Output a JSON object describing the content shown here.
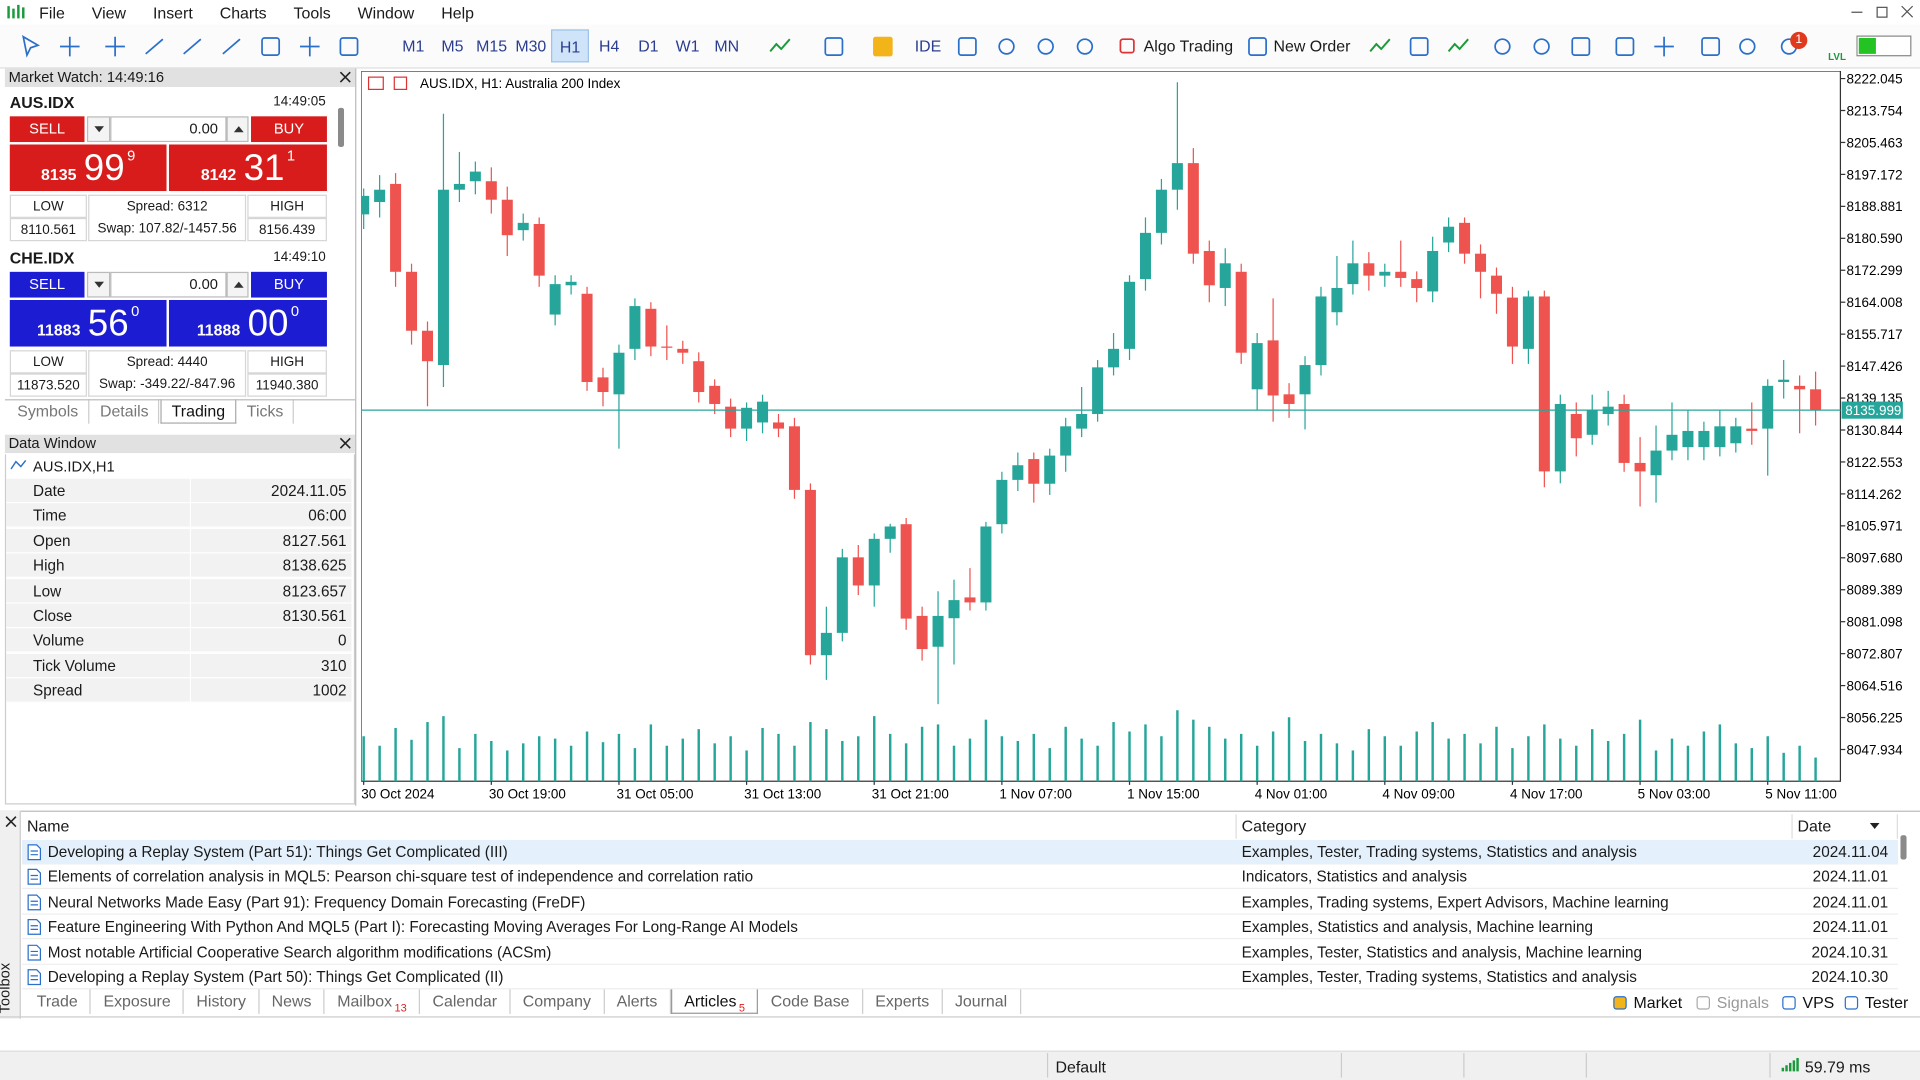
{
  "menu": [
    "File",
    "View",
    "Insert",
    "Charts",
    "Tools",
    "Window",
    "Help"
  ],
  "timeframes": [
    "M1",
    "M5",
    "M15",
    "M30",
    "H1",
    "H4",
    "D1",
    "W1",
    "MN"
  ],
  "toolbar": {
    "ide": "IDE",
    "algo_trading": "Algo Trading",
    "new_order": "New Order",
    "notifications": 1,
    "level": "LVL"
  },
  "market_watch": {
    "title": "Market Watch: 14:49:16",
    "symbols": [
      {
        "name": "AUS.IDX",
        "time": "14:49:05",
        "color": "#d81c1c",
        "sell": "SELL",
        "buy": "BUY",
        "volume": "0.00",
        "bid_big": "8135",
        "bid_main": "99",
        "bid_small": "9",
        "ask_big": "8142",
        "ask_main": "31",
        "ask_small": "1",
        "low_label": "LOW",
        "high_label": "HIGH",
        "spread": "Spread: 6312",
        "swap": "Swap: 107.82/-1457.56",
        "low": "8110.561",
        "high": "8156.439"
      },
      {
        "name": "CHE.IDX",
        "time": "14:49:10",
        "color": "#1c1cd2",
        "sell": "SELL",
        "buy": "BUY",
        "volume": "0.00",
        "bid_big": "11883",
        "bid_main": "56",
        "bid_small": "0",
        "ask_big": "11888",
        "ask_main": "00",
        "ask_small": "0",
        "low_label": "LOW",
        "high_label": "HIGH",
        "spread": "Spread: 4440",
        "swap": "Swap: -349.22/-847.96",
        "low": "11873.520",
        "high": "11940.380"
      }
    ],
    "tabs": [
      "Symbols",
      "Details",
      "Trading",
      "Ticks"
    ]
  },
  "data_window": {
    "title": "Data Window",
    "symbol": "AUS.IDX,H1",
    "rows": [
      [
        "Date",
        "2024.11.05"
      ],
      [
        "Time",
        "06:00"
      ],
      [
        "Open",
        "8127.561"
      ],
      [
        "High",
        "8138.625"
      ],
      [
        "Low",
        "8123.657"
      ],
      [
        "Close",
        "8130.561"
      ],
      [
        "Volume",
        "0"
      ],
      [
        "Tick Volume",
        "310"
      ],
      [
        "Spread",
        "1002"
      ]
    ]
  },
  "chart_data": {
    "type": "candlestick",
    "title": "AUS.IDX, H1:  Australia 200 Index",
    "up_color": "#26a69a",
    "down_color": "#ef5350",
    "volume_color": "#26a69a",
    "ylim": [
      8039.7,
      8224.0
    ],
    "yticks": [
      8222.045,
      8213.754,
      8205.463,
      8197.172,
      8188.881,
      {
        "value": 8180.59,
        "label": "8180.590"
      },
      8172.299,
      8164.008,
      8155.717,
      8147.426,
      8139.135,
      8130.844,
      8122.553,
      8114.262,
      8105.971,
      {
        "value": 8097.68,
        "label": "8097.680"
      },
      8089.389,
      8081.098,
      8072.807,
      8064.516,
      8056.225,
      8047.934
    ],
    "current_price": 8135.999,
    "categories": [
      "30 Oct 2024",
      null,
      null,
      null,
      null,
      null,
      null,
      null,
      "30 Oct 19:00",
      null,
      null,
      null,
      null,
      null,
      null,
      null,
      "31 Oct 05:00",
      null,
      null,
      null,
      null,
      null,
      null,
      null,
      "31 Oct 13:00",
      null,
      null,
      null,
      null,
      null,
      null,
      null,
      "31 Oct 21:00",
      null,
      null,
      null,
      null,
      null,
      null,
      null,
      "1 Nov 07:00",
      null,
      null,
      null,
      null,
      null,
      null,
      null,
      "1 Nov 15:00",
      null,
      null,
      null,
      null,
      null,
      null,
      null,
      "4 Nov 01:00",
      null,
      null,
      null,
      null,
      null,
      null,
      null,
      "4 Nov 09:00",
      null,
      null,
      null,
      null,
      null,
      null,
      null,
      "4 Nov 17:00",
      null,
      null,
      null,
      null,
      null,
      null,
      null,
      "5 Nov 03:00",
      null,
      null,
      null,
      null,
      null,
      null,
      null,
      "5 Nov 11:00",
      null,
      null,
      null
    ],
    "ohlc": [
      [
        8186.8,
        8193.5,
        8183.0,
        8191.6
      ],
      [
        8190.0,
        8197.0,
        8186.0,
        8193.2
      ],
      [
        8194.7,
        8197.5,
        8168.0,
        8171.9
      ],
      [
        8171.9,
        8174.0,
        8153.0,
        8156.6
      ],
      [
        8156.6,
        8159.0,
        8137.0,
        8148.7
      ],
      [
        8147.7,
        8212.9,
        8142.0,
        8193.2
      ],
      [
        8193.2,
        8203.0,
        8190.0,
        8194.7
      ],
      [
        8195.4,
        8200.5,
        8192.0,
        8197.9
      ],
      [
        8195.4,
        8199.0,
        8187.0,
        8190.6
      ],
      [
        8190.6,
        8194.0,
        8176.0,
        8181.4
      ],
      [
        8182.7,
        8187.0,
        8180.0,
        8184.6
      ],
      [
        8184.3,
        8186.0,
        8168.0,
        8170.9
      ],
      [
        8160.8,
        8171.0,
        8158.0,
        8168.7
      ],
      [
        8168.4,
        8171.0,
        8166.0,
        8169.3
      ],
      [
        8166.2,
        8168.0,
        8141.0,
        8143.3
      ],
      [
        8144.5,
        8147.0,
        8137.0,
        8140.7
      ],
      [
        8140.1,
        8153.0,
        8126.0,
        8150.9
      ],
      [
        8151.9,
        8165.0,
        8149.0,
        8163.0
      ],
      [
        8162.3,
        8164.0,
        8150.0,
        8152.5
      ],
      [
        8152.5,
        8158.0,
        8149.0,
        8152.2
      ],
      [
        8151.9,
        8154.0,
        8148.0,
        8150.9
      ],
      [
        8148.7,
        8151.0,
        8138.0,
        8140.7
      ],
      [
        8142.3,
        8144.0,
        8135.0,
        8137.6
      ],
      [
        8136.9,
        8139.0,
        8129.0,
        8131.2
      ],
      [
        8131.2,
        8138.0,
        8128.0,
        8136.6
      ],
      [
        8132.8,
        8140.0,
        8130.0,
        8138.2
      ],
      [
        8132.8,
        8135.0,
        8129.0,
        8131.2
      ],
      [
        8131.8,
        8134.0,
        8113.0,
        8115.3
      ],
      [
        8115.3,
        8117.0,
        8070.0,
        8072.4
      ],
      [
        8072.4,
        8085.0,
        8066.0,
        8078.2
      ],
      [
        8078.2,
        8100.0,
        8076.0,
        8097.8
      ],
      [
        8097.8,
        8101.0,
        8088.0,
        8090.5
      ],
      [
        8090.5,
        8104.0,
        8085.0,
        8102.6
      ],
      [
        8102.6,
        8106.5,
        8099.0,
        8105.8
      ],
      [
        8106.4,
        8108.0,
        8079.0,
        8081.9
      ],
      [
        8082.6,
        8085.0,
        8071.0,
        8074.0
      ],
      [
        8074.6,
        8089.0,
        8059.7,
        8082.6
      ],
      [
        8082.0,
        8092.0,
        8070.0,
        8086.7
      ],
      [
        8087.4,
        8095.0,
        8084.0,
        8086.1
      ],
      [
        8086.1,
        8107.0,
        8084.0,
        8105.8
      ],
      [
        8106.4,
        8120.0,
        8104.0,
        8117.9
      ],
      [
        8117.9,
        8125.0,
        8115.0,
        8121.7
      ],
      [
        8123.3,
        8125.0,
        8112.0,
        8116.9
      ],
      [
        8116.9,
        8126.0,
        8114.0,
        8124.2
      ],
      [
        8124.2,
        8134.0,
        8120.0,
        8131.8
      ],
      [
        8131.2,
        8142.0,
        8129.0,
        8135.0
      ],
      [
        8135.0,
        8149.0,
        8133.0,
        8147.1
      ],
      [
        8147.1,
        8156.0,
        8145.0,
        8151.9
      ],
      [
        8151.9,
        8171.0,
        8149.0,
        8169.3
      ],
      [
        8170.0,
        8186.0,
        8167.0,
        8182.0
      ],
      [
        8182.0,
        8196.0,
        8179.0,
        8193.2
      ],
      [
        8193.2,
        8221.1,
        8188.0,
        8200.1
      ],
      [
        8200.1,
        8204.0,
        8174.0,
        8176.6
      ],
      [
        8177.3,
        8180.0,
        8164.0,
        8168.4
      ],
      [
        8167.7,
        8178.0,
        8163.0,
        8174.1
      ],
      [
        8171.9,
        8174.0,
        8148.0,
        8150.9
      ],
      [
        8141.4,
        8156.0,
        8136.0,
        8153.4
      ],
      [
        8154.1,
        8165.0,
        8133.0,
        8139.8
      ],
      [
        8140.1,
        8143.0,
        8134.0,
        8137.6
      ],
      [
        8140.1,
        8150.0,
        8131.0,
        8147.7
      ],
      [
        8147.7,
        8168.0,
        8145.0,
        8165.5
      ],
      [
        8161.4,
        8176.0,
        8158.0,
        8167.7
      ],
      [
        8168.7,
        8180.0,
        8166.0,
        8174.1
      ],
      [
        8174.1,
        8177.0,
        8167.0,
        8170.9
      ],
      [
        8170.9,
        8174.0,
        8168.0,
        8171.9
      ],
      [
        8171.9,
        8180.0,
        8168.0,
        8170.3
      ],
      [
        8170.0,
        8172.0,
        8164.0,
        8167.7
      ],
      [
        8166.8,
        8181.0,
        8164.0,
        8177.3
      ],
      [
        8179.5,
        8186.0,
        8177.0,
        8183.6
      ],
      [
        8184.6,
        8186.0,
        8174.0,
        8176.6
      ],
      [
        8176.6,
        8179.0,
        8165.0,
        8171.9
      ],
      [
        8170.9,
        8173.0,
        8161.0,
        8166.2
      ],
      [
        8165.2,
        8168.0,
        8148.0,
        8152.5
      ],
      [
        8151.9,
        8167.0,
        8148.0,
        8165.5
      ],
      [
        8165.5,
        8167.0,
        8116.0,
        8120.1
      ],
      [
        8120.1,
        8140.0,
        8117.0,
        8137.6
      ],
      [
        8135.0,
        8138.0,
        8124.0,
        8128.7
      ],
      [
        8129.6,
        8140.0,
        8127.0,
        8136.0
      ],
      [
        8135.0,
        8141.0,
        8132.0,
        8136.9
      ],
      [
        8137.6,
        8140.0,
        8120.0,
        8122.3
      ],
      [
        8122.3,
        8129.0,
        8111.0,
        8120.1
      ],
      [
        8119.1,
        8132.0,
        8112.0,
        8125.5
      ],
      [
        8125.5,
        8138.0,
        8123.0,
        8129.6
      ],
      [
        8126.4,
        8136.0,
        8123.0,
        8130.6
      ],
      [
        8126.4,
        8133.0,
        8123.0,
        8130.6
      ],
      [
        8126.4,
        8136.0,
        8124.0,
        8131.8
      ],
      [
        8127.4,
        8134.0,
        8125.0,
        8131.8
      ],
      [
        8131.2,
        8138.0,
        8127.0,
        8130.6
      ],
      [
        8131.2,
        8144.0,
        8119.0,
        8142.3
      ],
      [
        8143.3,
        8149.0,
        8139.0,
        8143.9
      ],
      [
        8142.3,
        8145.0,
        8130.0,
        8141.4
      ],
      [
        8141.4,
        8146.0,
        8132.0,
        8136.0
      ]
    ],
    "volume": [
      38,
      30,
      45,
      35,
      50,
      55,
      28,
      40,
      34,
      26,
      32,
      38,
      36,
      30,
      42,
      33,
      40,
      28,
      48,
      30,
      36,
      44,
      32,
      38,
      26,
      45,
      40,
      30,
      50,
      44,
      34,
      38,
      55,
      40,
      32,
      46,
      48,
      30,
      36,
      52,
      38,
      34,
      40,
      28,
      46,
      36,
      30,
      50,
      42,
      48,
      38,
      60,
      52,
      46,
      36,
      40,
      30,
      42,
      54,
      34,
      40,
      32,
      26,
      44,
      38,
      30,
      42,
      50,
      36,
      40,
      32,
      46,
      28,
      38,
      48,
      36,
      30,
      44,
      34,
      40,
      52,
      26,
      36,
      30,
      42,
      48,
      32,
      28,
      38,
      24,
      30,
      20
    ]
  },
  "toolbox": {
    "side_label": "Toolbox",
    "columns": [
      "Name",
      "Category",
      "Date"
    ],
    "rows": [
      [
        "Developing a Replay System (Part 51): Things Get Complicated (III)",
        "Examples, Tester, Trading systems, Statistics and analysis",
        "2024.11.04"
      ],
      [
        "Elements of correlation analysis in MQL5: Pearson chi-square test of independence and correlation ratio",
        "Indicators, Statistics and analysis",
        "2024.11.01"
      ],
      [
        "Neural Networks Made Easy (Part 91): Frequency Domain Forecasting (FreDF)",
        "Examples, Trading systems, Expert Advisors, Machine learning",
        "2024.11.01"
      ],
      [
        "Feature Engineering With Python And MQL5 (Part I): Forecasting Moving Averages For Long-Range AI Models",
        "Examples, Statistics and analysis, Machine learning",
        "2024.11.01"
      ],
      [
        "Most notable Artificial Cooperative Search algorithm modifications (ACSm)",
        "Examples, Tester, Statistics and analysis, Machine learning",
        "2024.10.31"
      ],
      [
        "Developing a Replay System (Part 50): Things Get Complicated (II)",
        "Examples, Tester, Trading systems, Statistics and analysis",
        "2024.10.30"
      ]
    ],
    "tabs": [
      {
        "label": "Trade"
      },
      {
        "label": "Exposure"
      },
      {
        "label": "History"
      },
      {
        "label": "News"
      },
      {
        "label": "Mailbox",
        "badge": 13
      },
      {
        "label": "Calendar"
      },
      {
        "label": "Company"
      },
      {
        "label": "Alerts"
      },
      {
        "label": "Articles",
        "badge": 5
      },
      {
        "label": "Code Base"
      },
      {
        "label": "Experts"
      },
      {
        "label": "Journal"
      }
    ],
    "right": [
      "Market",
      "Signals",
      "VPS",
      "Tester"
    ]
  },
  "status": {
    "profile": "Default",
    "ping": "59.79 ms"
  }
}
